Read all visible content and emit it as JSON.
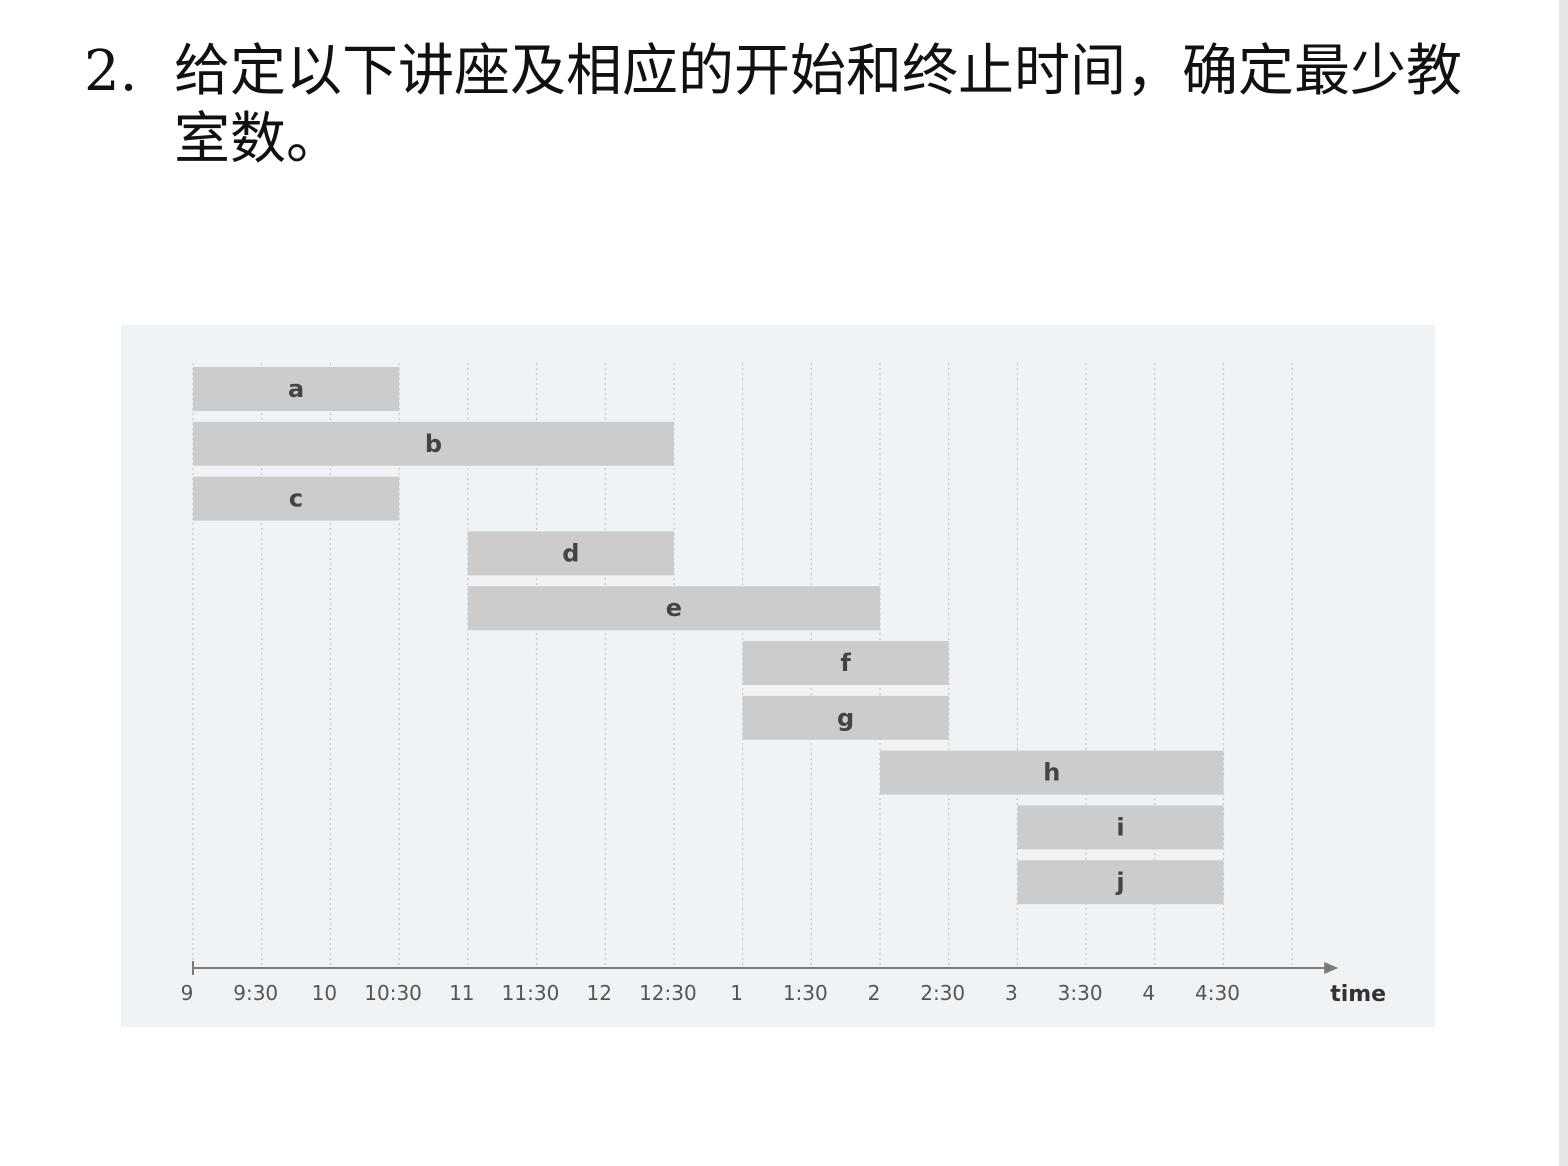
{
  "question": {
    "number": "2.",
    "line1": "给定以下讲座及相应的开始和终止时间，确定最少教",
    "line2": "室数。"
  },
  "chart_data": {
    "type": "gantt",
    "xlabel": "time",
    "x_ticks": [
      "9",
      "9:30",
      "10",
      "10:30",
      "11",
      "11:30",
      "12",
      "12:30",
      "1",
      "1:30",
      "2",
      "2:30",
      "3",
      "3:30",
      "4",
      "4:30"
    ],
    "x_range": [
      "9:00",
      "5:00"
    ],
    "grid": "vertical dotted lines every 30 minutes",
    "lectures": [
      {
        "label": "a",
        "start": "9:00",
        "end": "10:30"
      },
      {
        "label": "b",
        "start": "9:00",
        "end": "12:30"
      },
      {
        "label": "c",
        "start": "9:00",
        "end": "10:30"
      },
      {
        "label": "d",
        "start": "11:00",
        "end": "12:30"
      },
      {
        "label": "e",
        "start": "11:00",
        "end": "2:00"
      },
      {
        "label": "f",
        "start": "1:00",
        "end": "2:30"
      },
      {
        "label": "g",
        "start": "1:00",
        "end": "2:30"
      },
      {
        "label": "h",
        "start": "2:00",
        "end": "4:30"
      },
      {
        "label": "i",
        "start": "3:00",
        "end": "4:30"
      },
      {
        "label": "j",
        "start": "3:00",
        "end": "4:30"
      }
    ],
    "colors": {
      "panel_background": "#f0f3f6",
      "bar_fill": "#cccccc",
      "gridline": "#c4c8cc",
      "axis": "#7a7a7a",
      "tick_text": "#555555",
      "bar_text": "#444444",
      "axis_title_text": "#333333"
    }
  }
}
